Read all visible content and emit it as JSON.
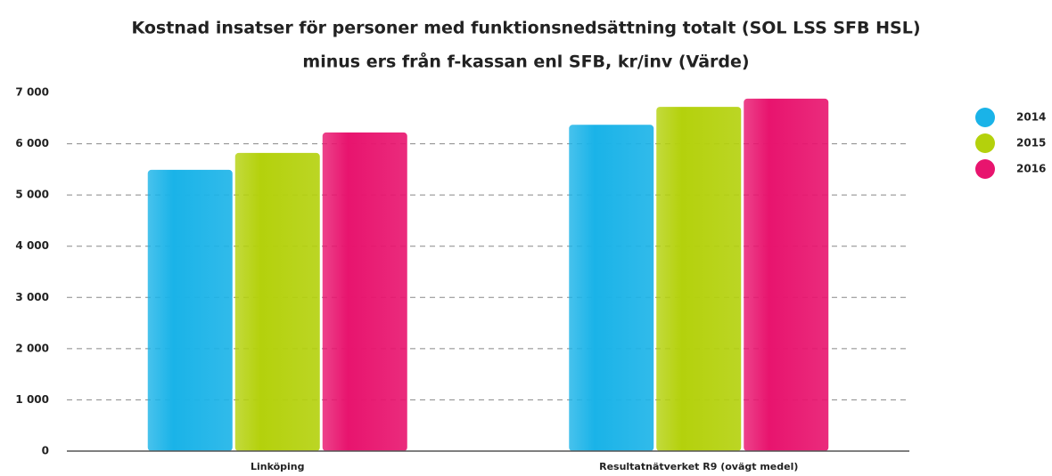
{
  "chart_data": {
    "type": "bar",
    "title": [
      "Kostnad insatser för personer med funktionsnedsättning totalt (SOL LSS SFB HSL)",
      "minus ers från f-kassan enl SFB, kr/inv (Värde)"
    ],
    "categories": [
      "Linköping",
      "Resultatnätverket R9 (ovägt medel)"
    ],
    "series": [
      {
        "name": "2014",
        "color": "#1ab3e8",
        "values": [
          5490,
          6370
        ]
      },
      {
        "name": "2015",
        "color": "#b4d10c",
        "values": [
          5820,
          6720
        ]
      },
      {
        "name": "2016",
        "color": "#e8146e",
        "values": [
          6220,
          6880
        ]
      }
    ],
    "ylim": [
      0,
      7000
    ],
    "yticks": [
      0,
      {
        "value": 1000,
        "label": "1 000"
      },
      {
        "value": 2000,
        "label": "2 000"
      },
      {
        "value": 3000,
        "label": "3 000"
      },
      {
        "value": 4000,
        "label": "4 000"
      },
      {
        "value": 5000,
        "label": "5 000"
      },
      {
        "value": 6000,
        "label": "6 000"
      },
      {
        "value": 7000,
        "label": "7 000"
      }
    ],
    "grid": true,
    "legend": "top-right"
  }
}
